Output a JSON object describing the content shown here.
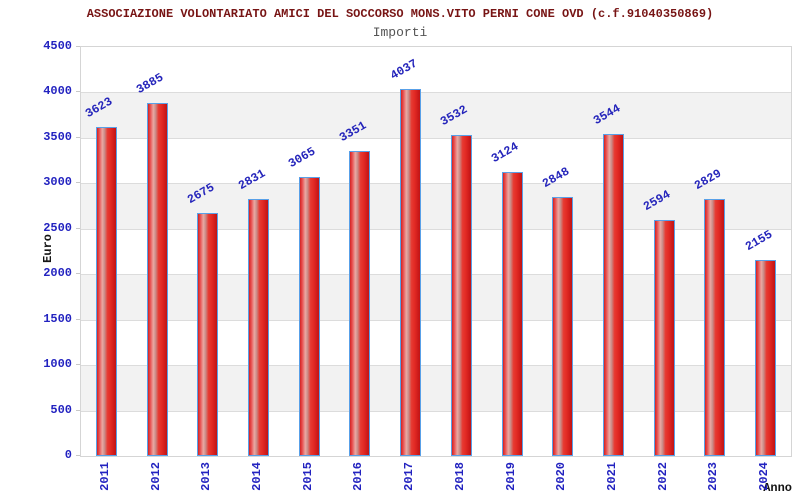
{
  "chart_data": {
    "type": "bar",
    "title": "ASSOCIAZIONE VOLONTARIATO AMICI DEL SOCCORSO MONS.VITO PERNI CONE OVD (c.f.91040350869)",
    "subtitle": "Importi",
    "categories": [
      "2011",
      "2012",
      "2013",
      "2014",
      "2015",
      "2016",
      "2017",
      "2018",
      "2019",
      "2020",
      "2021",
      "2022",
      "2023",
      "2024"
    ],
    "values": [
      3623,
      3885,
      2675,
      2831,
      3065,
      3351,
      4037,
      3532,
      3124,
      2848,
      3544,
      2594,
      2829,
      2155
    ],
    "xlabel": "Anno",
    "ylabel": "Euro",
    "ylim": [
      0,
      4500
    ],
    "ytick_step": 500,
    "y_ticks": [
      0,
      500,
      1000,
      1500,
      2000,
      2500,
      3000,
      3500,
      4000,
      4500
    ],
    "grid": "horizontal gridlines every 500 with alternating gray bands",
    "legend": "none",
    "bar_value_labels": "shown above each bar, rotated ~30 degrees"
  },
  "colors": {
    "title_text": "#771414",
    "subtitle_text": "#555555",
    "axis_number_text": "#2323c0",
    "bar_value_text": "#2525bb",
    "axis_title_text": "#141414",
    "bar_fill_red": "#e22a24",
    "bar_highlight": "#eba8a2",
    "bar_border_blue": "#58a0e8",
    "band_gray": "#f2f2f2",
    "gridline_gray": "#dcdcdc",
    "plot_border_gray": "#d5d5d5",
    "background": "#ffffff"
  }
}
